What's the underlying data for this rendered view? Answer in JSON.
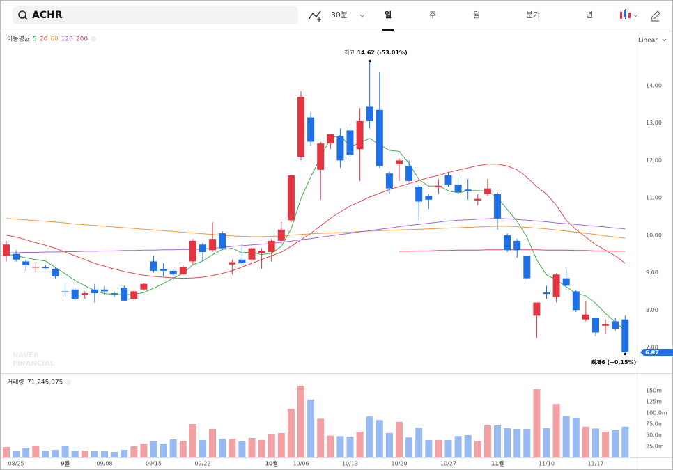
{
  "toolbar": {
    "symbol": "ACHR",
    "tabs": [
      "30분",
      "일",
      "주",
      "월",
      "분기",
      "년"
    ],
    "active_tab": 1
  },
  "chart_data": [
    {
      "type": "candlestick",
      "legend_title": "이동평균",
      "scale_label": "Linear",
      "watermark": [
        "NAVER",
        "FINANCIAL"
      ],
      "categories": [
        null,
        "08/25",
        null,
        null,
        null,
        null,
        "9월",
        null,
        null,
        null,
        "09/08",
        null,
        null,
        null,
        null,
        "09/15",
        null,
        null,
        null,
        null,
        "09/22",
        null,
        null,
        null,
        null,
        null,
        null,
        "10월",
        null,
        null,
        "10/06",
        null,
        null,
        null,
        null,
        "10/13",
        null,
        null,
        null,
        null,
        "10/20",
        null,
        null,
        null,
        null,
        "10/27",
        null,
        null,
        null,
        null,
        "11월",
        null,
        null,
        null,
        null,
        "11/10",
        null,
        null,
        null,
        null,
        "11/17",
        null,
        null,
        null
      ],
      "open": [
        9.45,
        9.5,
        9.3,
        9.15,
        9.15,
        9.1,
        8.5,
        8.55,
        8.4,
        8.55,
        8.55,
        8.45,
        8.6,
        8.3,
        8.55,
        9.3,
        9.1,
        9.05,
        8.95,
        9.3,
        9.75,
        9.6,
        10.05,
        9.22,
        9.35,
        9.35,
        9.52,
        9.55,
        9.85,
        10.4,
        12.1,
        13.15,
        11.75,
        12.45,
        12.65,
        12.8,
        12.3,
        13.45,
        13.35,
        11.65,
        11.9,
        11.85,
        11.3,
        11.05,
        11.28,
        11.6,
        11.35,
        11.22,
        10.93,
        11.1,
        11.1,
        10.0,
        9.85,
        9.45,
        7.85,
        8.47,
        8.35,
        8.85,
        8.5,
        7.75,
        7.8,
        7.58,
        7.7,
        7.75
      ],
      "high": [
        9.85,
        9.6,
        9.35,
        9.25,
        9.2,
        9.15,
        8.7,
        8.6,
        8.5,
        8.7,
        8.65,
        8.5,
        8.65,
        8.55,
        8.72,
        9.45,
        9.25,
        9.1,
        9.2,
        9.9,
        9.8,
        10.35,
        10.1,
        9.35,
        9.75,
        9.7,
        9.65,
        9.9,
        10.35,
        11.6,
        13.85,
        13.3,
        12.5,
        12.7,
        12.85,
        12.9,
        13.4,
        14.62,
        14.35,
        11.7,
        12.05,
        12.0,
        11.35,
        11.1,
        11.5,
        11.7,
        11.55,
        11.5,
        11.1,
        11.5,
        11.15,
        10.05,
        9.9,
        9.45,
        8.2,
        8.65,
        8.98,
        9.1,
        8.55,
        8.25,
        7.8,
        7.75,
        7.8,
        7.85
      ],
      "low": [
        9.3,
        9.3,
        9.05,
        9.0,
        9.1,
        8.85,
        8.35,
        8.25,
        8.3,
        8.2,
        8.4,
        8.35,
        8.25,
        8.25,
        8.5,
        9.0,
        8.9,
        8.8,
        8.95,
        9.2,
        9.3,
        9.55,
        9.6,
        8.95,
        9.2,
        9.2,
        9.1,
        9.3,
        9.8,
        10.35,
        12.0,
        12.4,
        10.95,
        12.3,
        11.8,
        12.1,
        11.45,
        12.85,
        11.8,
        11.1,
        11.45,
        11.4,
        10.4,
        10.7,
        11.1,
        11.3,
        11.1,
        10.95,
        10.8,
        11.05,
        10.15,
        9.55,
        9.4,
        8.8,
        7.25,
        8.3,
        8.2,
        8.6,
        7.95,
        7.7,
        7.3,
        7.35,
        7.45,
        6.86
      ],
      "close": [
        9.75,
        9.35,
        9.2,
        9.15,
        9.12,
        8.9,
        8.49,
        8.3,
        8.45,
        8.45,
        8.5,
        8.42,
        8.25,
        8.5,
        8.7,
        9.05,
        9.05,
        8.95,
        9.15,
        9.85,
        9.55,
        9.9,
        9.65,
        9.28,
        9.25,
        9.65,
        9.58,
        9.85,
        10.15,
        11.6,
        13.7,
        12.5,
        12.45,
        12.7,
        12.0,
        12.15,
        13.05,
        13.05,
        11.85,
        11.25,
        12.0,
        11.45,
        10.9,
        10.95,
        11.32,
        11.35,
        11.15,
        11.18,
        10.97,
        11.25,
        10.45,
        9.6,
        9.6,
        8.85,
        8.2,
        8.43,
        8.95,
        8.65,
        8.0,
        7.88,
        7.4,
        7.62,
        7.5,
        6.87
      ],
      "up_color": "#e3343f",
      "down_color": "#1f6fe5",
      "series": [
        {
          "name": "5",
          "color": "#3fae49",
          "values": [
            9.5,
            9.45,
            9.4,
            9.35,
            9.31,
            9.14,
            8.97,
            8.79,
            8.65,
            8.52,
            8.44,
            8.42,
            8.41,
            8.42,
            8.47,
            8.58,
            8.71,
            8.85,
            8.98,
            9.21,
            9.31,
            9.48,
            9.62,
            9.65,
            9.53,
            9.55,
            9.48,
            9.52,
            9.7,
            10.17,
            10.98,
            11.56,
            12.08,
            12.59,
            12.67,
            12.36,
            12.47,
            12.59,
            12.42,
            12.27,
            12.24,
            11.92,
            11.49,
            11.31,
            11.32,
            11.19,
            11.13,
            11.19,
            11.19,
            11.18,
            11.0,
            10.69,
            10.37,
            9.95,
            9.34,
            8.94,
            8.81,
            8.62,
            8.45,
            8.38,
            8.18,
            7.91,
            7.68,
            7.45
          ]
        },
        {
          "name": "20",
          "color": "#e5484f",
          "values": [
            10.0,
            9.95,
            9.88,
            9.8,
            9.73,
            9.65,
            9.55,
            9.45,
            9.35,
            9.25,
            9.17,
            9.1,
            9.03,
            8.98,
            8.93,
            8.9,
            8.88,
            8.86,
            8.85,
            8.86,
            8.88,
            8.92,
            8.98,
            9.05,
            9.15,
            9.25,
            9.35,
            9.45,
            9.55,
            9.7,
            9.88,
            10.05,
            10.25,
            10.45,
            10.62,
            10.78,
            10.9,
            11.02,
            11.12,
            11.22,
            11.3,
            11.38,
            11.46,
            11.54,
            11.6,
            11.68,
            11.74,
            11.8,
            11.86,
            11.9,
            11.9,
            11.85,
            11.75,
            11.55,
            11.3,
            11.1,
            10.8,
            10.4,
            10.15,
            9.95,
            9.75,
            9.6,
            9.45,
            9.25
          ]
        },
        {
          "name": "60",
          "color": "#f2963a",
          "values": [
            10.45,
            10.43,
            10.41,
            10.39,
            10.37,
            10.35,
            10.33,
            10.3,
            10.28,
            10.26,
            10.24,
            10.22,
            10.2,
            10.18,
            10.16,
            10.14,
            10.12,
            10.1,
            10.08,
            10.06,
            10.04,
            10.02,
            10.0,
            9.98,
            9.97,
            9.96,
            9.96,
            9.97,
            9.98,
            10.0,
            10.02,
            10.04,
            10.05,
            10.06,
            10.07,
            10.08,
            10.1,
            10.11,
            10.12,
            10.13,
            10.14,
            10.15,
            10.16,
            10.17,
            10.18,
            10.19,
            10.2,
            10.21,
            10.22,
            10.23,
            10.24,
            10.24,
            10.23,
            10.21,
            10.19,
            10.17,
            10.14,
            10.11,
            10.08,
            10.05,
            10.02,
            9.98,
            9.95,
            9.92
          ]
        },
        {
          "name": "120",
          "color": "#a266d9",
          "values": [
            9.53,
            9.53,
            9.54,
            9.54,
            9.55,
            9.55,
            9.56,
            9.56,
            9.57,
            9.57,
            9.58,
            9.58,
            9.59,
            9.59,
            9.6,
            9.6,
            9.61,
            9.61,
            9.62,
            9.62,
            9.63,
            9.65,
            9.67,
            9.7,
            9.72,
            9.74,
            9.76,
            9.78,
            9.81,
            9.84,
            9.88,
            9.91,
            9.95,
            9.98,
            10.02,
            10.05,
            10.09,
            10.12,
            10.16,
            10.19,
            10.23,
            10.26,
            10.29,
            10.32,
            10.35,
            10.38,
            10.4,
            10.41,
            10.43,
            10.44,
            10.45,
            10.44,
            10.42,
            10.4,
            10.38,
            10.36,
            10.33,
            10.31,
            10.29,
            10.26,
            10.24,
            10.22,
            10.19,
            10.17
          ]
        },
        {
          "name": "200",
          "color": "#e4455f",
          "values": [
            null,
            null,
            null,
            null,
            null,
            null,
            null,
            null,
            null,
            null,
            null,
            null,
            null,
            null,
            null,
            null,
            null,
            null,
            null,
            null,
            null,
            null,
            null,
            null,
            null,
            null,
            null,
            null,
            null,
            null,
            null,
            null,
            null,
            null,
            null,
            null,
            null,
            null,
            null,
            null,
            9.57,
            9.57,
            9.58,
            9.58,
            9.59,
            9.59,
            9.6,
            9.6,
            9.6,
            9.61,
            9.61,
            9.61,
            9.61,
            9.61,
            9.61,
            9.6,
            9.6,
            9.6,
            9.59,
            9.59,
            9.58,
            9.58,
            9.57,
            9.57
          ]
        }
      ],
      "ylim": [
        6.33,
        15.45
      ],
      "yticks": [
        {
          "value": 7,
          "label": "7.00"
        },
        {
          "value": 8,
          "label": "8.00"
        },
        {
          "value": 9,
          "label": "9.00"
        },
        {
          "value": 10,
          "label": "10.00"
        },
        {
          "value": 11,
          "label": "11.00"
        },
        {
          "value": 12,
          "label": "12.00"
        },
        {
          "value": 13,
          "label": "13.00"
        },
        {
          "value": 14,
          "label": "14.00"
        }
      ],
      "grid": false,
      "annotations": [
        {
          "label": "최고",
          "text": "14.62 (-53.01%)"
        },
        {
          "label": "최저",
          "text": "6.86 (+0.15%)"
        }
      ],
      "last_price_label": "6.87"
    },
    {
      "type": "bar",
      "title": "거래량",
      "title_value": "71,245,975",
      "values": [
        23.4,
        14,
        22,
        26.5,
        15.6,
        17,
        26.5,
        15.6,
        15.6,
        14,
        14,
        12.5,
        17,
        25,
        31,
        37.5,
        31,
        40.6,
        37.5,
        75,
        39,
        64,
        42,
        42,
        36,
        43.8,
        39,
        51.5,
        54.7,
        109,
        161,
        130,
        87,
        49,
        48,
        47,
        58,
        92,
        84,
        55,
        80,
        45,
        67,
        39,
        39,
        39,
        48,
        50,
        37,
        72,
        72,
        66,
        64,
        64,
        153,
        66,
        120,
        93,
        89,
        69,
        65,
        58,
        61,
        69
      ],
      "up_color": "#f3a0a5",
      "down_color": "#98baf2",
      "ylim": [
        0,
        175
      ],
      "yticks": [
        {
          "value": 25,
          "label": "25.0m"
        },
        {
          "value": 50,
          "label": "50.0m"
        },
        {
          "value": 75,
          "label": "75.0m"
        },
        {
          "value": 100,
          "label": "100.0m"
        },
        {
          "value": 125,
          "label": "125m"
        },
        {
          "value": 150,
          "label": "150m"
        }
      ]
    }
  ]
}
